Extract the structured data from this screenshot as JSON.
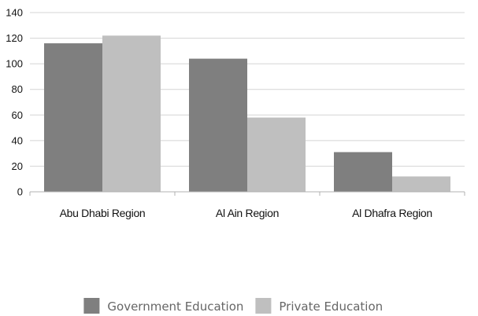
{
  "chart_data": {
    "type": "bar",
    "categories": [
      "Abu Dhabi Region",
      "Al Ain Region",
      "Al Dhafra Region"
    ],
    "series": [
      {
        "name": "Government Education",
        "values": [
          116,
          104,
          31
        ],
        "color": "#7f7f7f"
      },
      {
        "name": "Private Education",
        "values": [
          122,
          58,
          12
        ],
        "color": "#bfbfbf"
      }
    ],
    "title": "",
    "xlabel": "",
    "ylabel": "",
    "ylim": [
      0,
      140
    ],
    "yticks": [
      "0",
      "20",
      "40",
      "60",
      "80",
      "100",
      "120",
      "140"
    ],
    "grid": true,
    "legend_position": "bottom"
  }
}
